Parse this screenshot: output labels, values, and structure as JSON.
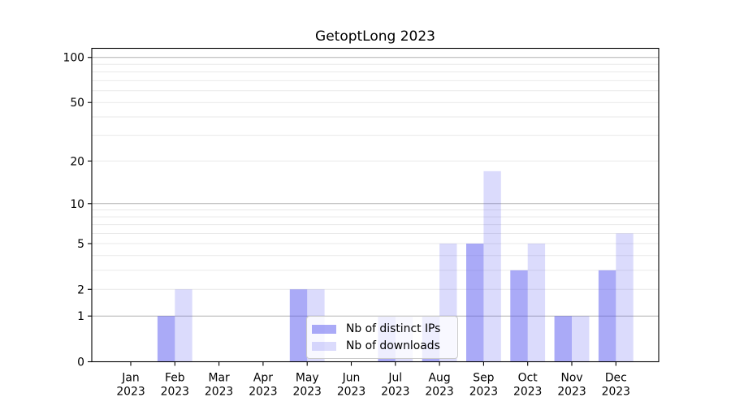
{
  "chart_data": {
    "type": "bar",
    "title": "GetoptLong 2023",
    "categories": [
      "Jan",
      "Feb",
      "Mar",
      "Apr",
      "May",
      "Jun",
      "Jul",
      "Aug",
      "Sep",
      "Oct",
      "Nov",
      "Dec"
    ],
    "category_year": "2023",
    "series": [
      {
        "name": "Nb of distinct IPs",
        "values": [
          0,
          1,
          0,
          0,
          2,
          0,
          1,
          1,
          5,
          3,
          1,
          3
        ],
        "color": "#5555f0",
        "fill_opacity": 0.5
      },
      {
        "name": "Nb of downloads",
        "values": [
          0,
          2,
          0,
          0,
          2,
          0,
          1,
          5,
          17,
          5,
          1,
          6
        ],
        "color": "#5555f0",
        "fill_opacity": 0.21
      }
    ],
    "xlabel": "",
    "ylabel": "",
    "y_scale": "log10(1+v)",
    "ylim": [
      0,
      115
    ],
    "y_ticks": [
      0,
      1,
      2,
      5,
      10,
      20,
      50,
      100
    ],
    "y_tick_labels": [
      "0",
      "1",
      "2",
      "5",
      "10",
      "20",
      "50",
      "100"
    ],
    "grid": "horizontal",
    "grid_major": [
      1,
      10,
      100
    ],
    "grid_minor": [
      2,
      3,
      4,
      5,
      6,
      7,
      8,
      9,
      20,
      30,
      40,
      50,
      60,
      70,
      80,
      90
    ],
    "grid_major_color": "#b2b2b2",
    "grid_minor_color": "#e9e9e9",
    "axis_color": "#000000",
    "text_color": "#000000",
    "legend_position": "lower center"
  }
}
